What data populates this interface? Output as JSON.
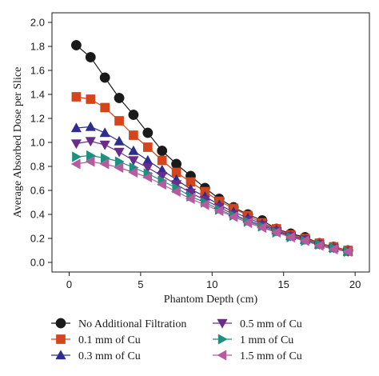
{
  "chart_data": {
    "type": "line",
    "xlabel": "Phantom Depth (cm)",
    "ylabel": "Average Absorbed Dose per Slice",
    "xlim": [
      -1.2,
      21
    ],
    "ylim": [
      -0.08,
      2.08
    ],
    "xticks": [
      0,
      5,
      10,
      15,
      20
    ],
    "yticks": [
      0.0,
      0.2,
      0.4,
      0.6,
      0.8,
      1.0,
      1.2,
      1.4,
      1.6,
      1.8,
      2.0
    ],
    "grid": false,
    "legend_position": "bottom",
    "x": [
      0.5,
      1.5,
      2.5,
      3.5,
      4.5,
      5.5,
      6.5,
      7.5,
      8.5,
      9.5,
      10.5,
      11.5,
      12.5,
      13.5,
      14.5,
      15.5,
      16.5,
      17.5,
      18.5,
      19.5
    ],
    "series": [
      {
        "name": "No Additional Filtration",
        "marker": "circle",
        "color": "#1a1a1a",
        "values": [
          1.81,
          1.71,
          1.54,
          1.37,
          1.23,
          1.08,
          0.93,
          0.82,
          0.72,
          0.62,
          0.53,
          0.46,
          0.4,
          0.35,
          0.28,
          0.24,
          0.21,
          0.16,
          0.13,
          0.1
        ]
      },
      {
        "name": "0.1 mm of Cu",
        "marker": "square",
        "color": "#d4451c",
        "values": [
          1.38,
          1.36,
          1.29,
          1.18,
          1.06,
          0.96,
          0.85,
          0.75,
          0.67,
          0.59,
          0.51,
          0.45,
          0.39,
          0.33,
          0.28,
          0.23,
          0.2,
          0.16,
          0.13,
          0.1
        ]
      },
      {
        "name": "0.3 mm of Cu",
        "marker": "triangle-up",
        "color": "#2d2d8f",
        "values": [
          1.12,
          1.13,
          1.08,
          1.01,
          0.93,
          0.85,
          0.77,
          0.69,
          0.61,
          0.55,
          0.48,
          0.42,
          0.37,
          0.32,
          0.27,
          0.22,
          0.19,
          0.15,
          0.12,
          0.09
        ]
      },
      {
        "name": "0.5 mm of Cu",
        "marker": "triangle-down",
        "color": "#6a2c8a",
        "values": [
          0.99,
          1.01,
          0.98,
          0.92,
          0.85,
          0.79,
          0.72,
          0.65,
          0.58,
          0.52,
          0.46,
          0.4,
          0.35,
          0.31,
          0.26,
          0.22,
          0.19,
          0.15,
          0.12,
          0.09
        ]
      },
      {
        "name": "1 mm of Cu",
        "marker": "triangle-right",
        "color": "#1e9080",
        "values": [
          0.88,
          0.89,
          0.87,
          0.84,
          0.79,
          0.74,
          0.68,
          0.62,
          0.55,
          0.5,
          0.44,
          0.39,
          0.34,
          0.3,
          0.25,
          0.21,
          0.18,
          0.15,
          0.12,
          0.09
        ]
      },
      {
        "name": "1.5 mm of Cu",
        "marker": "triangle-left",
        "color": "#b85aa0",
        "values": [
          0.82,
          0.84,
          0.82,
          0.79,
          0.75,
          0.71,
          0.65,
          0.59,
          0.53,
          0.48,
          0.43,
          0.38,
          0.33,
          0.29,
          0.25,
          0.21,
          0.18,
          0.14,
          0.11,
          0.09
        ]
      }
    ]
  }
}
